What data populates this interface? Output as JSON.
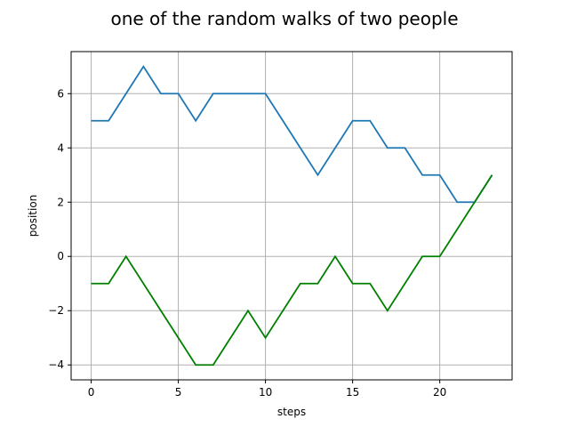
{
  "chart_data": {
    "type": "line",
    "title": "one of the random walks of two people",
    "xlabel": "steps",
    "ylabel": "position",
    "xlim": [
      -1.15,
      24.15
    ],
    "ylim": [
      -4.55,
      7.55
    ],
    "grid": true,
    "x_ticks": [
      0,
      5,
      10,
      15,
      20
    ],
    "y_ticks": [
      -4,
      -2,
      0,
      2,
      4,
      6
    ],
    "x": [
      0,
      1,
      2,
      3,
      4,
      5,
      6,
      7,
      8,
      9,
      10,
      11,
      12,
      13,
      14,
      15,
      16,
      17,
      18,
      19,
      20,
      21,
      22,
      23
    ],
    "series": [
      {
        "color": "#1f77b4",
        "values": [
          5,
          5,
          6,
          7,
          6,
          6,
          5,
          6,
          6,
          6,
          6,
          5,
          4,
          3,
          4,
          5,
          5,
          4,
          4,
          3,
          3,
          2,
          2,
          3
        ]
      },
      {
        "color": "#008000",
        "values": [
          -1,
          -1,
          0,
          -1,
          -2,
          -3,
          -4,
          -4,
          -3,
          -2,
          -3,
          -2,
          -1,
          -1,
          0,
          -1,
          -1,
          -2,
          -1,
          0,
          0,
          1,
          2,
          3
        ]
      }
    ]
  }
}
